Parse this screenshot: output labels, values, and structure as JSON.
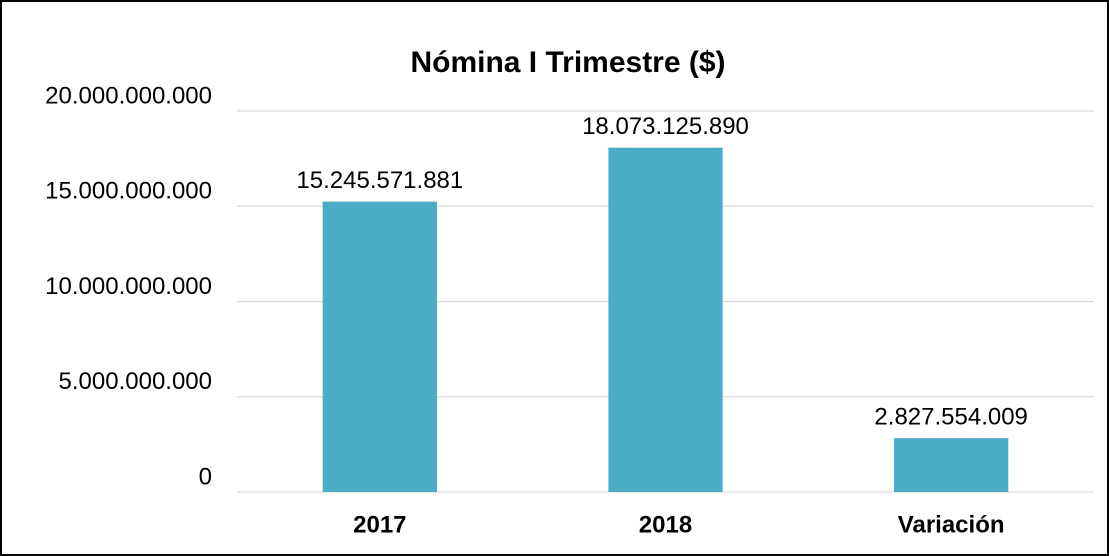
{
  "chart_data": {
    "type": "bar",
    "title": "Nómina I Trimestre ($)",
    "categories": [
      "2017",
      "2018",
      "Variación"
    ],
    "values": [
      15245571881,
      18073125890,
      2827554009
    ],
    "value_labels": [
      "15.245.571.881",
      "18.073.125.890",
      "2.827.554.009"
    ],
    "color": "#4bacc6",
    "ylim": [
      0,
      20000000000
    ],
    "yticks": [
      0,
      {
        "value": 5000000000,
        "label": "5.000.000.000"
      },
      {
        "value": 10000000000,
        "label": "10.000.000.000"
      },
      {
        "value": 15000000000,
        "label": "15.000.000.000"
      },
      {
        "value": 20000000000,
        "label": "20.000.000.000"
      }
    ],
    "grid": true
  }
}
